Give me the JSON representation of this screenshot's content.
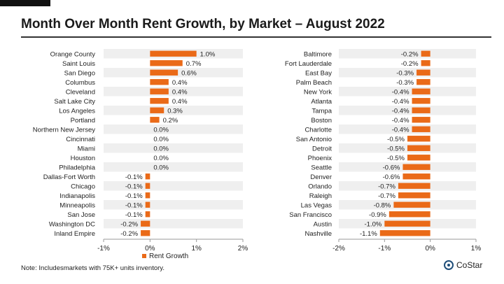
{
  "title": "Month Over Month Rent Growth, by Market – August 2022",
  "legend_label": "Rent Growth",
  "note": "Note: Includesmarkets with 75K+ units inventory.",
  "brand": "CoStar",
  "colors": {
    "bar": "#ea6a18",
    "band": "#efefef",
    "axis": "#999999"
  },
  "chart_data": [
    {
      "type": "bar",
      "orientation": "horizontal",
      "categories": [
        "Orange County",
        "Saint Louis",
        "San Diego",
        "Columbus",
        "Cleveland",
        "Salt Lake City",
        "Los Angeles",
        "Portland",
        "Northern New Jersey",
        "Cincinnati",
        "Miami",
        "Houston",
        "Philadelphia",
        "Dallas-Fort Worth",
        "Chicago",
        "Indianapolis",
        "Minneapolis",
        "San Jose",
        "Washington DC",
        "Inland Empire"
      ],
      "values": [
        1.0,
        0.7,
        0.6,
        0.4,
        0.4,
        0.4,
        0.3,
        0.2,
        0.0,
        0.0,
        0.0,
        0.0,
        0.0,
        -0.1,
        -0.1,
        -0.1,
        -0.1,
        -0.1,
        -0.2,
        -0.2
      ],
      "data_labels": [
        "1.0%",
        "0.7%",
        "0.6%",
        "0.4%",
        "0.4%",
        "0.4%",
        "0.3%",
        "0.2%",
        "0.0%",
        "0.0%",
        "0.0%",
        "0.0%",
        "0.0%",
        "-0.1%",
        "-0.1%",
        "-0.1%",
        "-0.1%",
        "-0.1%",
        "-0.2%",
        "-0.2%"
      ],
      "xlim": [
        -1,
        2
      ],
      "xticks": [
        -1,
        0,
        1,
        2
      ],
      "xtick_labels": [
        "-1%",
        "0%",
        "1%",
        "2%"
      ],
      "series": [
        {
          "name": "Rent Growth"
        }
      ]
    },
    {
      "type": "bar",
      "orientation": "horizontal",
      "categories": [
        "Baltimore",
        "Fort Lauderdale",
        "East Bay",
        "Palm Beach",
        "New York",
        "Atlanta",
        "Tampa",
        "Boston",
        "Charlotte",
        "San Antonio",
        "Detroit",
        "Phoenix",
        "Seattle",
        "Denver",
        "Orlando",
        "Raleigh",
        "Las Vegas",
        "San Francisco",
        "Austin",
        "Nashville"
      ],
      "values": [
        -0.2,
        -0.2,
        -0.3,
        -0.3,
        -0.4,
        -0.4,
        -0.4,
        -0.4,
        -0.4,
        -0.5,
        -0.5,
        -0.5,
        -0.6,
        -0.6,
        -0.7,
        -0.7,
        -0.8,
        -0.9,
        -1.0,
        -1.1
      ],
      "data_labels": [
        "-0.2%",
        "-0.2%",
        "-0.3%",
        "-0.3%",
        "-0.4%",
        "-0.4%",
        "-0.4%",
        "-0.4%",
        "-0.4%",
        "-0.5%",
        "-0.5%",
        "-0.5%",
        "-0.6%",
        "-0.6%",
        "-0.7%",
        "-0.7%",
        "-0.8%",
        "-0.9%",
        "-1.0%",
        "-1.1%"
      ],
      "xlim": [
        -2,
        1
      ],
      "xticks": [
        -2,
        -1,
        0,
        1
      ],
      "xtick_labels": [
        "-2%",
        "-1%",
        "0%",
        "1%"
      ]
    }
  ]
}
